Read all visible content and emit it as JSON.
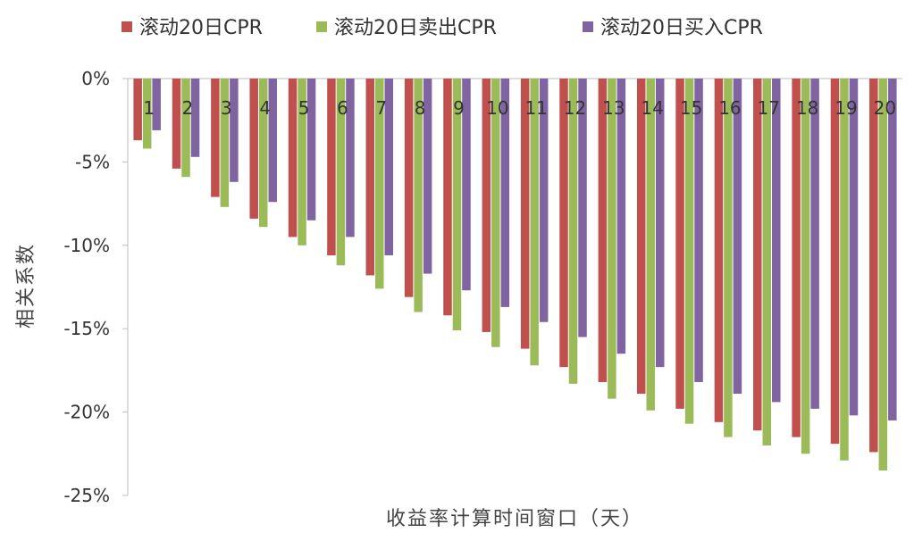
{
  "chart_data": {
    "type": "bar",
    "title": "",
    "xlabel": "收益率计算时间窗口（天）",
    "ylabel": "相关系数",
    "ylim": [
      -25,
      0
    ],
    "yticks": [
      0,
      -5,
      -10,
      -15,
      -20,
      -25
    ],
    "ytick_labels": [
      "0%",
      "-5%",
      "-10%",
      "-15%",
      "-20%",
      "-25%"
    ],
    "legend_position": "top",
    "grid": false,
    "categories": [
      "1",
      "2",
      "3",
      "4",
      "5",
      "6",
      "7",
      "8",
      "9",
      "10",
      "11",
      "12",
      "13",
      "14",
      "15",
      "16",
      "17",
      "18",
      "19",
      "20"
    ],
    "series": [
      {
        "name": "滚动20日CPR",
        "color": "#c0504d",
        "values": [
          -3.7,
          -5.4,
          -7.1,
          -8.4,
          -9.5,
          -10.6,
          -11.8,
          -13.1,
          -14.2,
          -15.2,
          -16.2,
          -17.3,
          -18.2,
          -18.9,
          -19.8,
          -20.6,
          -21.1,
          -21.5,
          -21.9,
          -22.4
        ]
      },
      {
        "name": "滚动20日卖出CPR",
        "color": "#9bbb59",
        "values": [
          -4.2,
          -5.9,
          -7.7,
          -8.9,
          -10.0,
          -11.2,
          -12.6,
          -14.0,
          -15.1,
          -16.1,
          -17.2,
          -18.3,
          -19.2,
          -19.9,
          -20.7,
          -21.5,
          -22.0,
          -22.5,
          -22.9,
          -23.5
        ]
      },
      {
        "name": "滚动20日买入CPR",
        "color": "#8064a2",
        "values": [
          -3.1,
          -4.7,
          -6.2,
          -7.4,
          -8.5,
          -9.5,
          -10.6,
          -11.7,
          -12.7,
          -13.7,
          -14.6,
          -15.5,
          -16.5,
          -17.3,
          -18.2,
          -18.9,
          -19.4,
          -19.8,
          -20.2,
          -20.5
        ]
      }
    ]
  }
}
